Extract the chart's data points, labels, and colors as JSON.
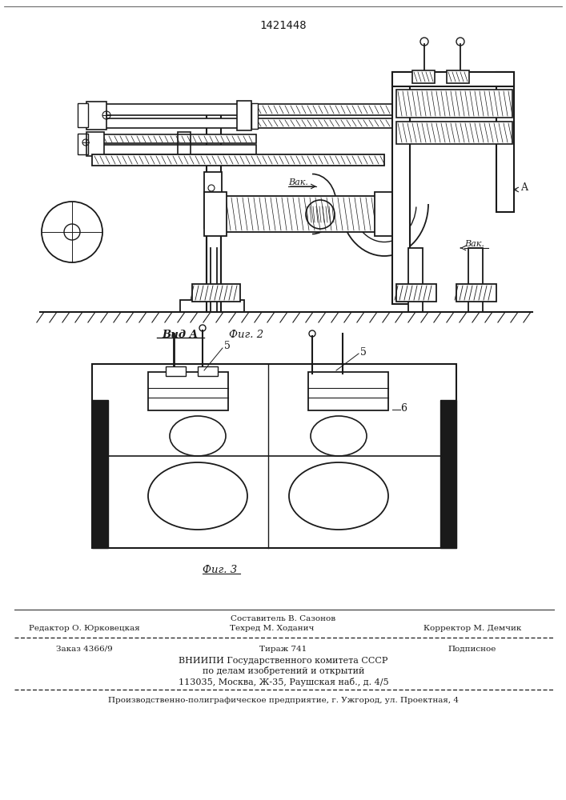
{
  "patent_number": "1421448",
  "background_color": "#ffffff",
  "line_color": "#1a1a1a",
  "fig2_label_left": "Вид A",
  "fig2_label_right": "Фиг. 2",
  "fig3_label": "Фиг. 3",
  "footer_sestavitel": "Составитель В. Сазонов",
  "footer_redaktor": "Редактор О. Юрковецкая",
  "footer_tehred": "Техред М. Ходанич",
  "footer_korrektor": "Корректор М. Демчик",
  "footer_zakaz": "Заказ 4366/9",
  "footer_tirazh": "Тираж 741",
  "footer_podpisnoe": "Подписное",
  "footer_vnipi_line1": "ВНИИПИ Государственного комитета СССР",
  "footer_vnipi_line2": "по делам изобретений и открытий",
  "footer_vnipi_line3": "113035, Москва, Ж-35, Раушская наб., д. 4/5",
  "footer_last": "Производственно-полиграфическое предприятие, г. Ужгород, ул. Проектная, 4",
  "page_width": 7.07,
  "page_height": 10.0
}
